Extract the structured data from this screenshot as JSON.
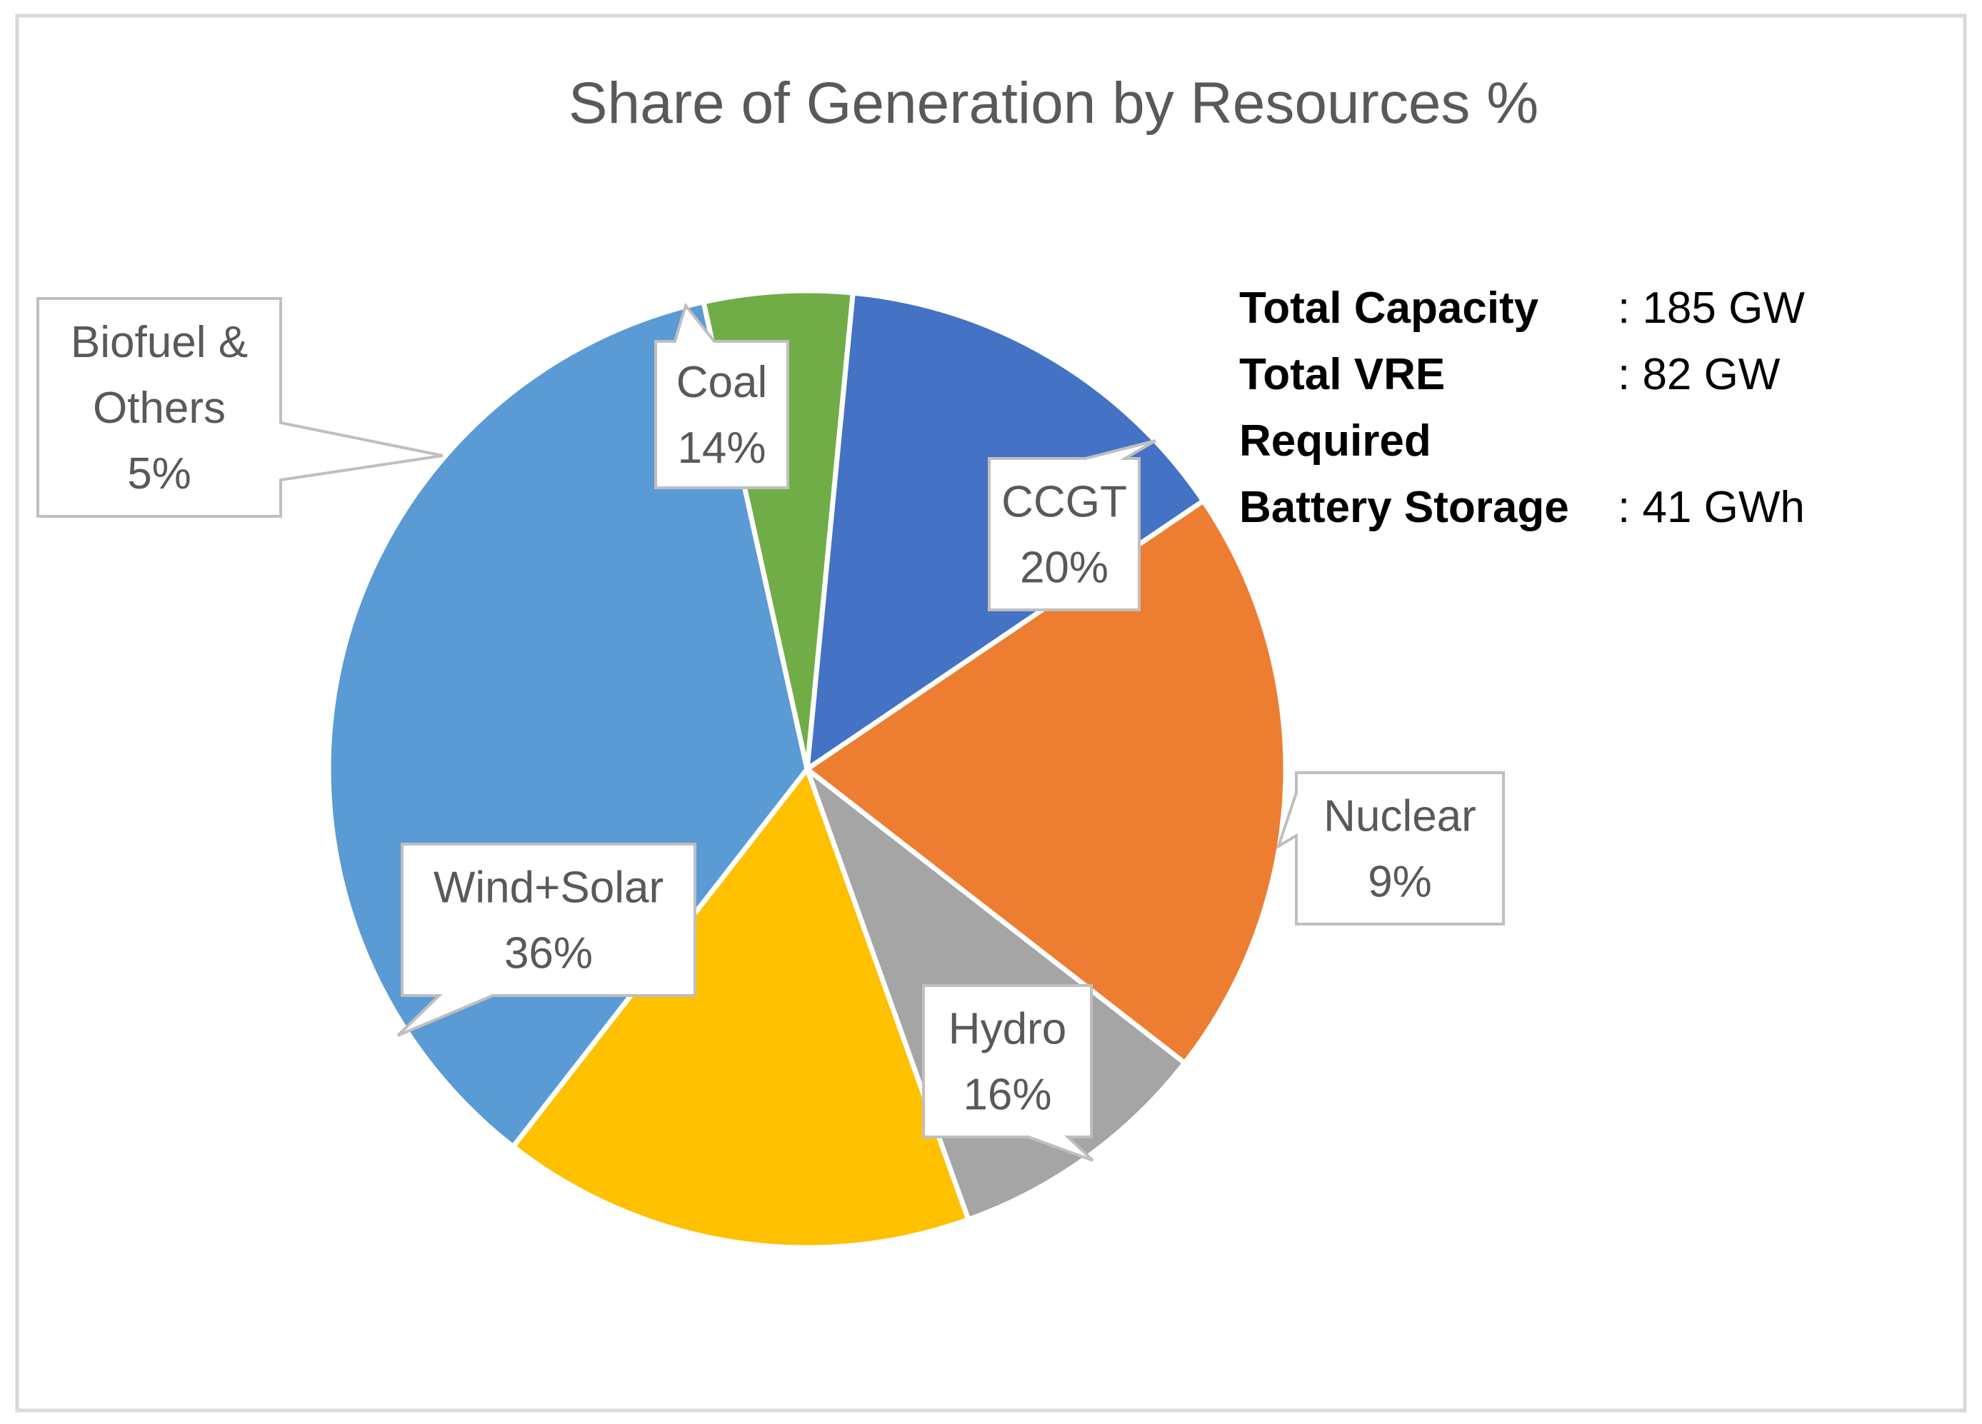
{
  "chart_data": {
    "type": "pie",
    "title": "Share of Generation by Resources %",
    "unit": "%",
    "slices": [
      {
        "key": "coal",
        "name": "Coal",
        "value": 14,
        "label_lines": [
          "Coal",
          "14%"
        ],
        "color": "#4472C4"
      },
      {
        "key": "ccgt",
        "name": "CCGT",
        "value": 20,
        "label_lines": [
          "CCGT",
          "20%"
        ],
        "color": "#ED7D31"
      },
      {
        "key": "nuclear",
        "name": "Nuclear",
        "value": 9,
        "label_lines": [
          "Nuclear",
          "9%"
        ],
        "color": "#A5A5A5"
      },
      {
        "key": "hydro",
        "name": "Hydro",
        "value": 16,
        "label_lines": [
          "Hydro",
          "16%"
        ],
        "color": "#FFC000"
      },
      {
        "key": "wind-solar",
        "name": "Wind+Solar",
        "value": 36,
        "label_lines": [
          "Wind+Solar",
          "36%"
        ],
        "color": "#5B9BD5"
      },
      {
        "key": "biofuel-others",
        "name": "Biofuel & Others",
        "value": 5,
        "label_lines": [
          "Biofuel &",
          "Others",
          "5%"
        ],
        "color": "#70AD47"
      }
    ],
    "annotation": {
      "rows": [
        {
          "label": "Total Capacity",
          "value": ": 185 GW"
        },
        {
          "label": "Total VRE",
          "value": ": 82 GW"
        },
        {
          "label": "Required",
          "value": ""
        },
        {
          "label": "Battery Storage",
          "value": ": 41 GWh"
        }
      ]
    }
  }
}
